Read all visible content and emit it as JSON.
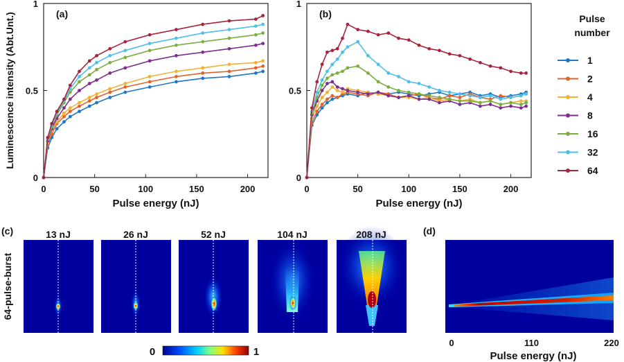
{
  "chart_data": [
    {
      "type": "line",
      "panel_label": "(a)",
      "xlabel": "Pulse energy (nJ)",
      "ylabel": "Luminescence intensity (Abt.Unt.)",
      "xlim": [
        0,
        220
      ],
      "ylim": [
        0,
        1
      ],
      "xticks": [
        0,
        50,
        100,
        150,
        200
      ],
      "yticks": [
        0,
        0.5,
        1
      ],
      "ytick_labels": [
        "0",
        "0.5",
        "1"
      ],
      "series": [
        {
          "name": "1",
          "color": "#1f77c4",
          "x": [
            0,
            4,
            8,
            13,
            20,
            26,
            35,
            45,
            52,
            65,
            80,
            104,
            130,
            156,
            182,
            208,
            215
          ],
          "y": [
            0,
            0.17,
            0.23,
            0.28,
            0.32,
            0.35,
            0.38,
            0.41,
            0.43,
            0.46,
            0.49,
            0.52,
            0.55,
            0.57,
            0.58,
            0.6,
            0.61
          ]
        },
        {
          "name": "2",
          "color": "#e0632a",
          "x": [
            0,
            4,
            8,
            13,
            20,
            26,
            35,
            45,
            52,
            65,
            80,
            104,
            130,
            156,
            182,
            208,
            215
          ],
          "y": [
            0,
            0.19,
            0.25,
            0.31,
            0.35,
            0.38,
            0.41,
            0.44,
            0.46,
            0.49,
            0.52,
            0.55,
            0.58,
            0.6,
            0.61,
            0.63,
            0.64
          ]
        },
        {
          "name": "4",
          "color": "#f2b134",
          "x": [
            0,
            4,
            8,
            13,
            20,
            26,
            35,
            45,
            52,
            65,
            80,
            104,
            130,
            156,
            182,
            208,
            215
          ],
          "y": [
            0,
            0.2,
            0.27,
            0.32,
            0.37,
            0.4,
            0.43,
            0.46,
            0.48,
            0.51,
            0.54,
            0.58,
            0.61,
            0.63,
            0.65,
            0.66,
            0.67
          ]
        },
        {
          "name": "8",
          "color": "#7d2e8e",
          "x": [
            0,
            4,
            8,
            13,
            20,
            26,
            35,
            45,
            52,
            65,
            80,
            104,
            130,
            156,
            182,
            208,
            215
          ],
          "y": [
            0,
            0.21,
            0.28,
            0.34,
            0.4,
            0.45,
            0.5,
            0.54,
            0.56,
            0.6,
            0.63,
            0.67,
            0.7,
            0.72,
            0.74,
            0.76,
            0.77
          ]
        },
        {
          "name": "16",
          "color": "#7bae3f",
          "x": [
            0,
            4,
            8,
            13,
            20,
            26,
            35,
            45,
            52,
            65,
            80,
            104,
            130,
            156,
            182,
            208,
            215
          ],
          "y": [
            0,
            0.22,
            0.29,
            0.36,
            0.43,
            0.49,
            0.55,
            0.59,
            0.62,
            0.66,
            0.69,
            0.73,
            0.76,
            0.78,
            0.8,
            0.82,
            0.83
          ]
        },
        {
          "name": "32",
          "color": "#4dbfe9",
          "x": [
            0,
            4,
            8,
            13,
            20,
            26,
            35,
            45,
            52,
            65,
            80,
            104,
            130,
            156,
            182,
            208,
            215
          ],
          "y": [
            0,
            0.22,
            0.3,
            0.37,
            0.44,
            0.51,
            0.58,
            0.63,
            0.66,
            0.7,
            0.73,
            0.77,
            0.8,
            0.83,
            0.85,
            0.87,
            0.88
          ]
        },
        {
          "name": "64",
          "color": "#a8243a",
          "x": [
            0,
            4,
            8,
            13,
            20,
            26,
            35,
            45,
            52,
            65,
            80,
            104,
            130,
            156,
            182,
            208,
            215
          ],
          "y": [
            0,
            0.23,
            0.31,
            0.38,
            0.45,
            0.53,
            0.61,
            0.67,
            0.7,
            0.74,
            0.78,
            0.82,
            0.85,
            0.88,
            0.9,
            0.91,
            0.93
          ]
        }
      ]
    },
    {
      "type": "line",
      "panel_label": "(b)",
      "xlabel": "Pulse energy (nJ)",
      "xlim": [
        0,
        220
      ],
      "ylim": [
        0,
        1
      ],
      "xticks": [
        0,
        50,
        100,
        150,
        200
      ],
      "yticks": [
        0,
        0.5,
        1
      ],
      "ytick_labels": [
        "0",
        "0.5",
        "1"
      ],
      "series": [
        {
          "name": "1",
          "color": "#1f77c4",
          "x": [
            0,
            5,
            10,
            15,
            20,
            25,
            30,
            35,
            40,
            50,
            60,
            70,
            80,
            90,
            100,
            110,
            120,
            130,
            140,
            150,
            160,
            170,
            180,
            190,
            200,
            210,
            215
          ],
          "y": [
            0,
            0.3,
            0.36,
            0.4,
            0.43,
            0.45,
            0.46,
            0.47,
            0.48,
            0.47,
            0.49,
            0.48,
            0.48,
            0.49,
            0.48,
            0.47,
            0.48,
            0.49,
            0.47,
            0.48,
            0.49,
            0.47,
            0.48,
            0.46,
            0.47,
            0.48,
            0.49
          ]
        },
        {
          "name": "2",
          "color": "#e0632a",
          "x": [
            0,
            5,
            10,
            15,
            20,
            25,
            30,
            35,
            40,
            50,
            60,
            70,
            80,
            90,
            100,
            110,
            120,
            130,
            140,
            150,
            160,
            170,
            180,
            190,
            200,
            210,
            215
          ],
          "y": [
            0,
            0.32,
            0.38,
            0.42,
            0.45,
            0.47,
            0.46,
            0.48,
            0.49,
            0.48,
            0.47,
            0.49,
            0.48,
            0.46,
            0.47,
            0.48,
            0.46,
            0.45,
            0.47,
            0.46,
            0.48,
            0.46,
            0.45,
            0.47,
            0.46,
            0.47,
            0.48
          ]
        },
        {
          "name": "4",
          "color": "#f2b134",
          "x": [
            0,
            5,
            10,
            15,
            20,
            25,
            30,
            35,
            40,
            50,
            60,
            70,
            80,
            90,
            100,
            110,
            120,
            130,
            140,
            150,
            160,
            170,
            180,
            190,
            200,
            210,
            215
          ],
          "y": [
            0,
            0.34,
            0.41,
            0.46,
            0.49,
            0.52,
            0.5,
            0.49,
            0.51,
            0.5,
            0.49,
            0.48,
            0.47,
            0.46,
            0.46,
            0.45,
            0.46,
            0.44,
            0.45,
            0.44,
            0.45,
            0.43,
            0.44,
            0.42,
            0.43,
            0.44,
            0.44
          ]
        },
        {
          "name": "8",
          "color": "#7d2e8e",
          "x": [
            0,
            5,
            10,
            15,
            20,
            25,
            30,
            35,
            40,
            50,
            60,
            70,
            80,
            90,
            100,
            110,
            120,
            130,
            140,
            150,
            160,
            170,
            180,
            190,
            200,
            210,
            215
          ],
          "y": [
            0,
            0.36,
            0.44,
            0.5,
            0.54,
            0.55,
            0.52,
            0.51,
            0.5,
            0.49,
            0.48,
            0.49,
            0.47,
            0.46,
            0.47,
            0.45,
            0.45,
            0.43,
            0.44,
            0.42,
            0.43,
            0.41,
            0.42,
            0.4,
            0.41,
            0.4,
            0.41
          ]
        },
        {
          "name": "16",
          "color": "#7bae3f",
          "x": [
            0,
            5,
            10,
            15,
            20,
            25,
            30,
            35,
            40,
            50,
            60,
            70,
            80,
            90,
            100,
            110,
            120,
            130,
            140,
            150,
            160,
            170,
            180,
            190,
            200,
            210,
            215
          ],
          "y": [
            0,
            0.37,
            0.46,
            0.53,
            0.57,
            0.59,
            0.6,
            0.61,
            0.63,
            0.64,
            0.6,
            0.55,
            0.52,
            0.5,
            0.49,
            0.48,
            0.47,
            0.46,
            0.45,
            0.44,
            0.44,
            0.43,
            0.44,
            0.42,
            0.43,
            0.42,
            0.43
          ]
        },
        {
          "name": "32",
          "color": "#4dbfe9",
          "x": [
            0,
            5,
            10,
            15,
            20,
            25,
            30,
            35,
            40,
            50,
            60,
            70,
            80,
            90,
            100,
            110,
            120,
            130,
            140,
            150,
            160,
            170,
            180,
            190,
            200,
            210,
            215
          ],
          "y": [
            0,
            0.38,
            0.49,
            0.56,
            0.61,
            0.65,
            0.68,
            0.72,
            0.75,
            0.78,
            0.7,
            0.65,
            0.6,
            0.58,
            0.55,
            0.54,
            0.52,
            0.5,
            0.49,
            0.48,
            0.47,
            0.46,
            0.47,
            0.45,
            0.46,
            0.47,
            0.48
          ]
        },
        {
          "name": "64",
          "color": "#a8243a",
          "x": [
            0,
            5,
            10,
            15,
            20,
            25,
            30,
            35,
            40,
            50,
            60,
            70,
            80,
            90,
            100,
            110,
            120,
            130,
            140,
            150,
            160,
            170,
            180,
            190,
            200,
            210,
            215
          ],
          "y": [
            0,
            0.4,
            0.55,
            0.65,
            0.72,
            0.73,
            0.74,
            0.8,
            0.88,
            0.85,
            0.84,
            0.82,
            0.83,
            0.8,
            0.79,
            0.76,
            0.74,
            0.73,
            0.71,
            0.7,
            0.68,
            0.66,
            0.64,
            0.63,
            0.61,
            0.6,
            0.6
          ]
        }
      ]
    },
    {
      "type": "heatmap",
      "panel_label": "(c)",
      "ylabel": "64-pulse-burst",
      "energies": [
        "13 nJ",
        "26 nJ",
        "52 nJ",
        "104 nJ",
        "208 nJ"
      ],
      "colorbar": {
        "min_label": "0",
        "max_label": "1"
      }
    },
    {
      "type": "heatmap",
      "panel_label": "(d)",
      "xlabel": "Pulse energy (nJ)",
      "xlim": [
        0,
        220
      ],
      "xticks": [
        0,
        110,
        220
      ]
    }
  ],
  "legend": {
    "title_line1": "Pulse",
    "title_line2": "number"
  }
}
